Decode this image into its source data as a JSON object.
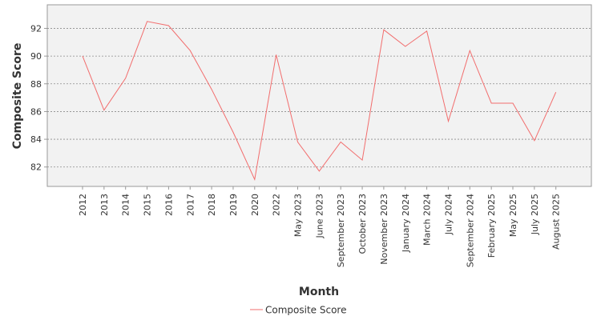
{
  "chart_data": {
    "type": "line",
    "title": "",
    "xlabel": "Month",
    "ylabel": "Composite Score",
    "categories": [
      "2012",
      "2013",
      "2014",
      "2015",
      "2016",
      "2017",
      "2018",
      "2019",
      "2020",
      "2022",
      "May 2023",
      "June 2023",
      "September 2023",
      "October 2023",
      "November 2023",
      "January 2024",
      "March 2024",
      "July 2024",
      "September 2024",
      "February 2025",
      "May 2025",
      "July 2025",
      "August 2025"
    ],
    "series": [
      {
        "name": "Composite Score",
        "color": "#f26d6d",
        "values": [
          90.0,
          86.1,
          88.4,
          92.5,
          92.2,
          90.4,
          87.6,
          84.5,
          81.1,
          90.1,
          83.8,
          81.7,
          83.8,
          82.5,
          91.9,
          90.7,
          91.8,
          85.3,
          90.4,
          86.6,
          86.6,
          83.9,
          87.4
        ]
      }
    ],
    "ylim": [
      80.6,
      93.7
    ],
    "yticks": [
      82,
      84,
      86,
      88,
      90,
      92
    ],
    "grid": true,
    "legend_position": "bottom-center"
  }
}
